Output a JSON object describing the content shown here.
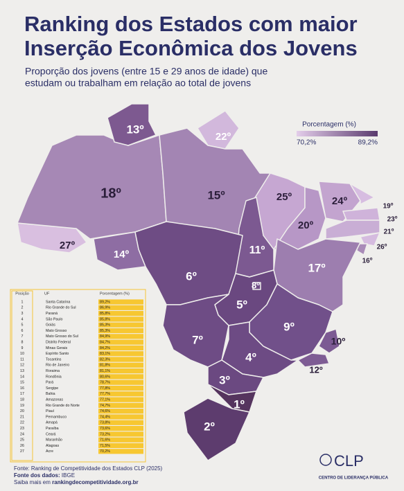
{
  "header": {
    "title_line1": "Ranking dos Estados com maior",
    "title_line2": "Inserção Econômica dos Jovens",
    "subtitle_line1": "Proporção dos jovens (entre 15 e 29 anos de idade) que",
    "subtitle_line2": "estudam ou trabalham em relação ao total de jovens"
  },
  "legend": {
    "title": "Porcentagem (%)",
    "min": "70,2%",
    "max": "89,2%"
  },
  "map": {
    "labels": [
      "13º",
      "22º",
      "18º",
      "15º",
      "25º",
      "24º",
      "19º",
      "23º",
      "21º",
      "20º",
      "26º",
      "16º",
      "27º",
      "14º",
      "11º",
      "17º",
      "6º",
      "8º",
      "5º",
      "9º",
      "10º",
      "7º",
      "4º",
      "12º",
      "3º",
      "1º",
      "2º"
    ]
  },
  "table": {
    "headers": [
      "Posição",
      "UF",
      "Porcentagem (%)"
    ],
    "rows": [
      [
        "1",
        "Santa Catarina",
        "89,2%"
      ],
      [
        "2",
        "Rio Grande do Sul",
        "86,9%"
      ],
      [
        "3",
        "Paraná",
        "85,8%"
      ],
      [
        "4",
        "São Paulo",
        "85,8%"
      ],
      [
        "5",
        "Goiás",
        "85,3%"
      ],
      [
        "6",
        "Mato Grosso",
        "85,3%"
      ],
      [
        "7",
        "Mato Grosso do Sul",
        "84,9%"
      ],
      [
        "8",
        "Distrito Federal",
        "84,7%"
      ],
      [
        "9",
        "Minas Gerais",
        "84,2%"
      ],
      [
        "10",
        "Espírito Santo",
        "83,1%"
      ],
      [
        "11",
        "Tocantins",
        "82,3%"
      ],
      [
        "12",
        "Rio de Janeiro",
        "81,8%"
      ],
      [
        "13",
        "Roraima",
        "81,1%"
      ],
      [
        "14",
        "Rondônia",
        "80,6%"
      ],
      [
        "15",
        "Pará",
        "78,7%"
      ],
      [
        "16",
        "Sergipe",
        "77,8%"
      ],
      [
        "17",
        "Bahia",
        "77,7%"
      ],
      [
        "18",
        "Amazonas",
        "77,1%"
      ],
      [
        "19",
        "Rio Grande do Norte",
        "74,7%"
      ],
      [
        "20",
        "Piauí",
        "74,6%"
      ],
      [
        "21",
        "Pernambuco",
        "74,4%"
      ],
      [
        "22",
        "Amapá",
        "73,8%"
      ],
      [
        "23",
        "Paraíba",
        "73,6%"
      ],
      [
        "24",
        "Ceará",
        "73,2%"
      ],
      [
        "25",
        "Maranhão",
        "71,6%"
      ],
      [
        "26",
        "Alagoas",
        "71,5%"
      ],
      [
        "27",
        "Acre",
        "70,2%"
      ]
    ]
  },
  "footer": {
    "source": "Fonte: Ranking de Competitividade dos Estados CLP (2025)",
    "data_label": "Fonte dos dados:",
    "data_source": "IBGE",
    "more_label": "Saiba mais em",
    "more_link": "rankingdecompetitividade.org.br"
  },
  "logo": {
    "name": "CLP",
    "full_name": "CENTRO DE LIDERANÇA PÚBLICA"
  }
}
